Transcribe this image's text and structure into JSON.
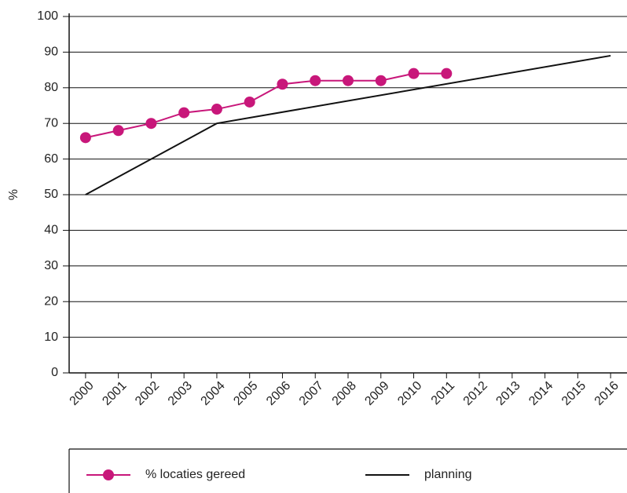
{
  "chart_data": {
    "type": "line",
    "ylabel": "%",
    "xlim": [
      1999.5,
      2016.5
    ],
    "xticks": [
      2000,
      2001,
      2002,
      2003,
      2004,
      2005,
      2006,
      2007,
      2008,
      2009,
      2010,
      2011,
      2012,
      2013,
      2014,
      2015,
      2016
    ],
    "ylim": [
      0,
      100
    ],
    "yticks": [
      0,
      10,
      20,
      30,
      40,
      50,
      60,
      70,
      80,
      90,
      100
    ],
    "grid": true,
    "legend": "bottom",
    "series": [
      {
        "name": "% locaties gereed",
        "color": "#c8177a",
        "markers": true,
        "x": [
          2000,
          2001,
          2002,
          2003,
          2004,
          2005,
          2006,
          2007,
          2008,
          2009,
          2010,
          2011
        ],
        "values": [
          66,
          68,
          70,
          73,
          74,
          76,
          81,
          82,
          82,
          82,
          84,
          84
        ]
      },
      {
        "name": "planning",
        "color": "#111111",
        "markers": false,
        "x": [
          2000,
          2004,
          2016
        ],
        "values": [
          50,
          70,
          89
        ]
      }
    ]
  }
}
